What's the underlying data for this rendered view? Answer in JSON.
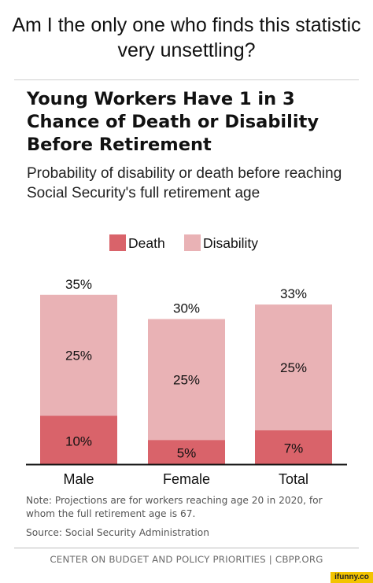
{
  "meme_caption": "Am I the only one who finds this statistic very unsettling?",
  "chart_data": {
    "type": "bar",
    "stacked": true,
    "title": "Young Workers Have 1 in 3 Chance of Death or Disability Before Retirement",
    "subtitle": "Probability of disability or death before reaching Social Security's full retirement age",
    "categories": [
      "Male",
      "Female",
      "Total"
    ],
    "series": [
      {
        "name": "Death",
        "values": [
          10,
          5,
          7
        ],
        "labels": [
          "10%",
          "5%",
          "7%"
        ],
        "color": "#d9636a"
      },
      {
        "name": "Disability",
        "values": [
          25,
          25,
          25
        ],
        "labels": [
          "25%",
          "25%",
          "25%"
        ],
        "color": "#e9b2b5"
      }
    ],
    "totals": [
      35,
      30,
      33
    ],
    "total_labels": [
      "35%",
      "30%",
      "33%"
    ],
    "ylim": [
      0,
      40
    ],
    "grid": false,
    "legend_position": "top-center",
    "xlabel": "",
    "ylabel": ""
  },
  "note": "Note: Projections are for workers reaching age 20 in 2020, for whom the full retirement age is 67.",
  "source": "Source: Social Security Administration",
  "footer": "CENTER ON BUDGET AND POLICY PRIORITIES | CBPP.ORG",
  "watermark": "ifunny.co"
}
